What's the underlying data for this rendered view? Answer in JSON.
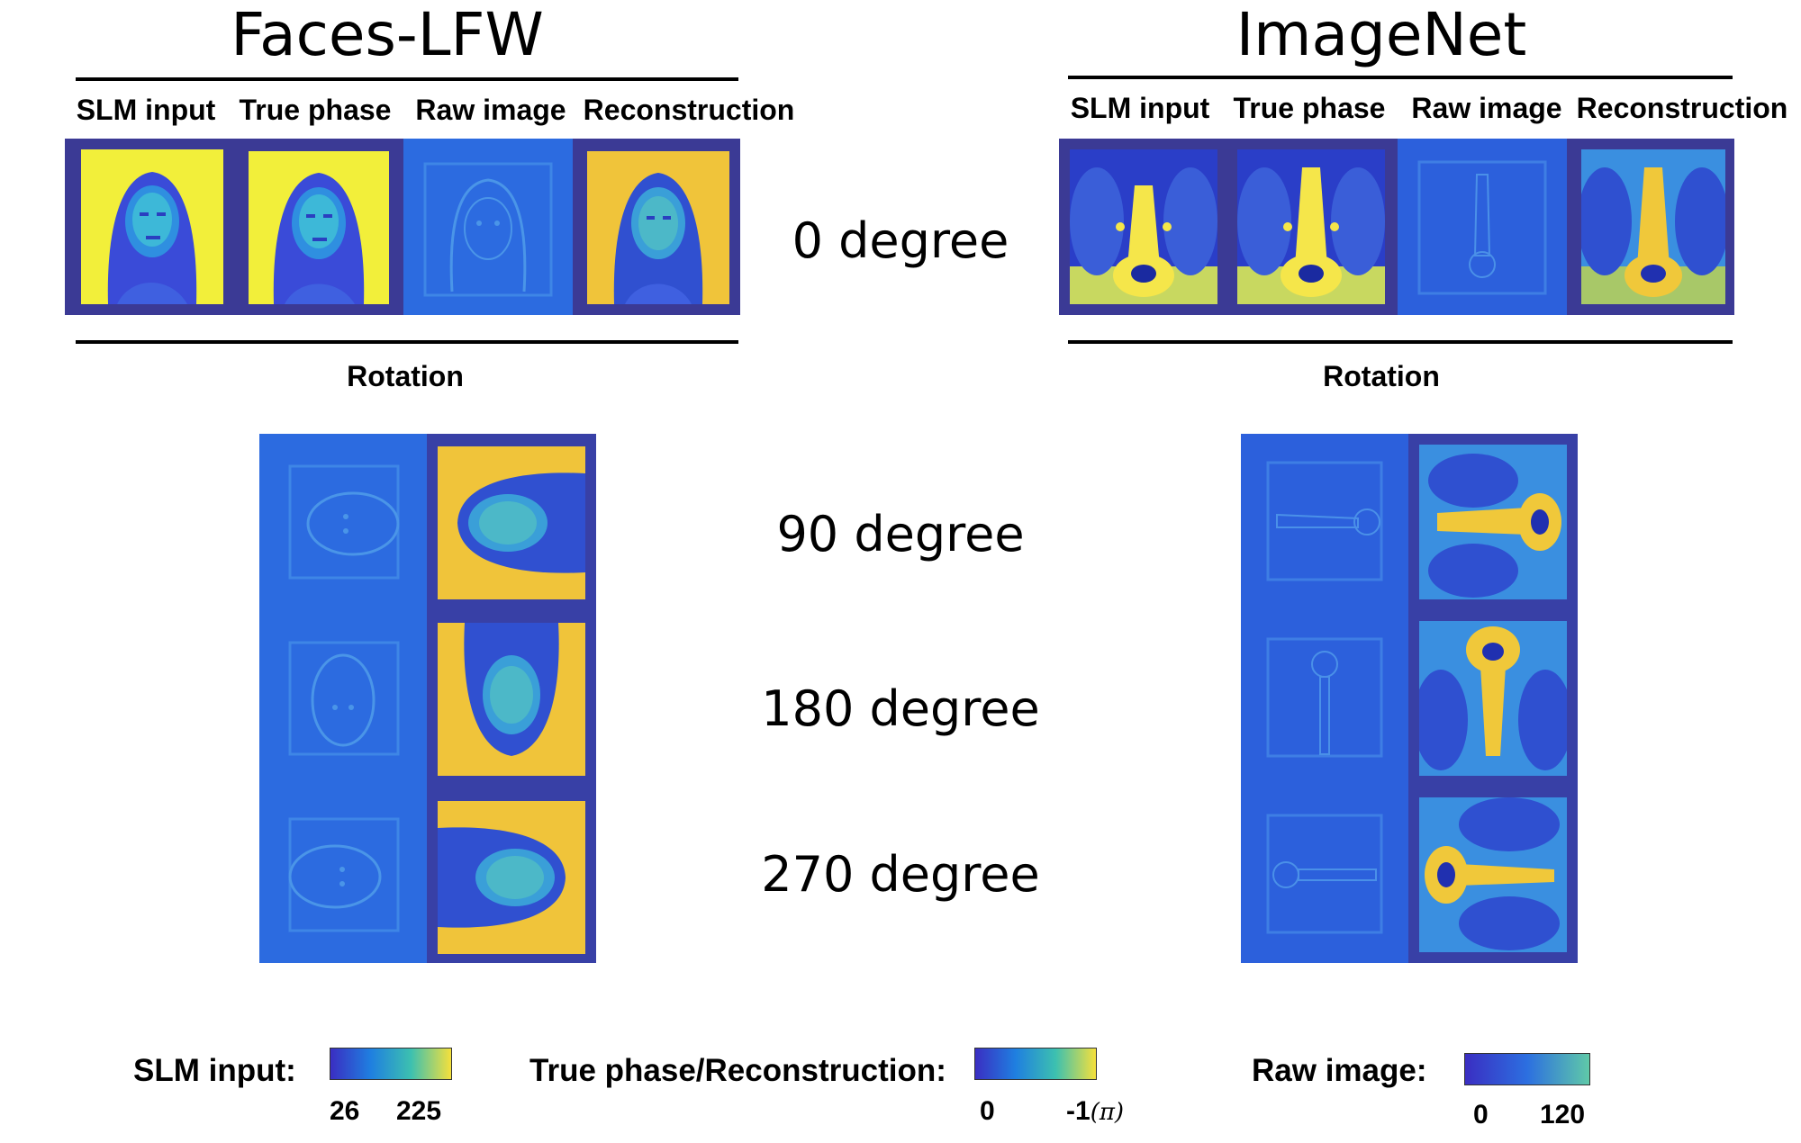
{
  "panels": {
    "left": {
      "title": "Faces-LFW",
      "columns": [
        "SLM input",
        "True phase",
        "Raw image",
        "Reconstruction"
      ],
      "rotation_label": "Rotation"
    },
    "right": {
      "title": "ImageNet",
      "columns": [
        "SLM input",
        "True phase",
        "Raw image",
        "Reconstruction"
      ],
      "rotation_label": "Rotation"
    }
  },
  "degree_labels": [
    "0 degree",
    "90 degree",
    "180 degree",
    "270 degree"
  ],
  "colorbars": [
    {
      "label": "SLM input:",
      "min": "26",
      "max": "225",
      "colors": [
        "#3a2ec2",
        "#1f7fe0",
        "#3cc0b0",
        "#f5e03c"
      ]
    },
    {
      "label": "True phase/Reconstruction:",
      "min": "0",
      "max": "-1",
      "max_unit": "(π)",
      "colors": [
        "#3a2ec2",
        "#1f7fe0",
        "#3cc0b0",
        "#f5e03c"
      ]
    },
    {
      "label": "Raw image:",
      "min": "0",
      "max": "120",
      "colors": [
        "#3a2ec2",
        "#2c6fe0",
        "#5fc9a8"
      ]
    }
  ],
  "colors": {
    "dark_navy": "#3b3a95",
    "blue": "#2f5fe0",
    "yellow": "#f5ec3a",
    "orange_yellow": "#f0c43a",
    "teal": "#3cc0b0"
  }
}
